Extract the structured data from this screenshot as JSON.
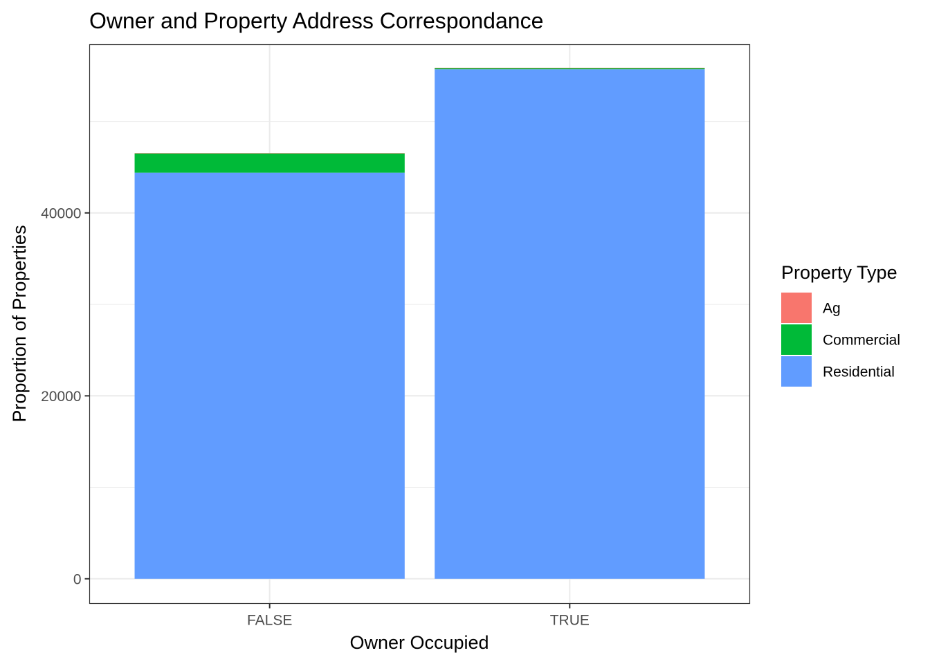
{
  "chart_data": {
    "type": "bar",
    "stacked": true,
    "title": "Owner and Property Address Correspondance",
    "xlabel": "Owner Occupied",
    "ylabel": "Proportion of Properties",
    "categories": [
      "FALSE",
      "TRUE"
    ],
    "series": [
      {
        "name": "Residential",
        "color": "#619CFF",
        "values": [
          44400,
          55700
        ]
      },
      {
        "name": "Commercial",
        "color": "#00BA38",
        "values": [
          2100,
          150
        ]
      },
      {
        "name": "Ag",
        "color": "#F8766D",
        "values": [
          50,
          20
        ]
      }
    ],
    "ylim": [
      -2700,
      58400
    ],
    "yticks": [
      0,
      20000,
      40000
    ],
    "yminor": [
      10000,
      30000,
      50000
    ],
    "grid": true,
    "legend": {
      "title": "Property Type",
      "position": "right",
      "entries": [
        "Ag",
        "Commercial",
        "Residential"
      ]
    }
  }
}
